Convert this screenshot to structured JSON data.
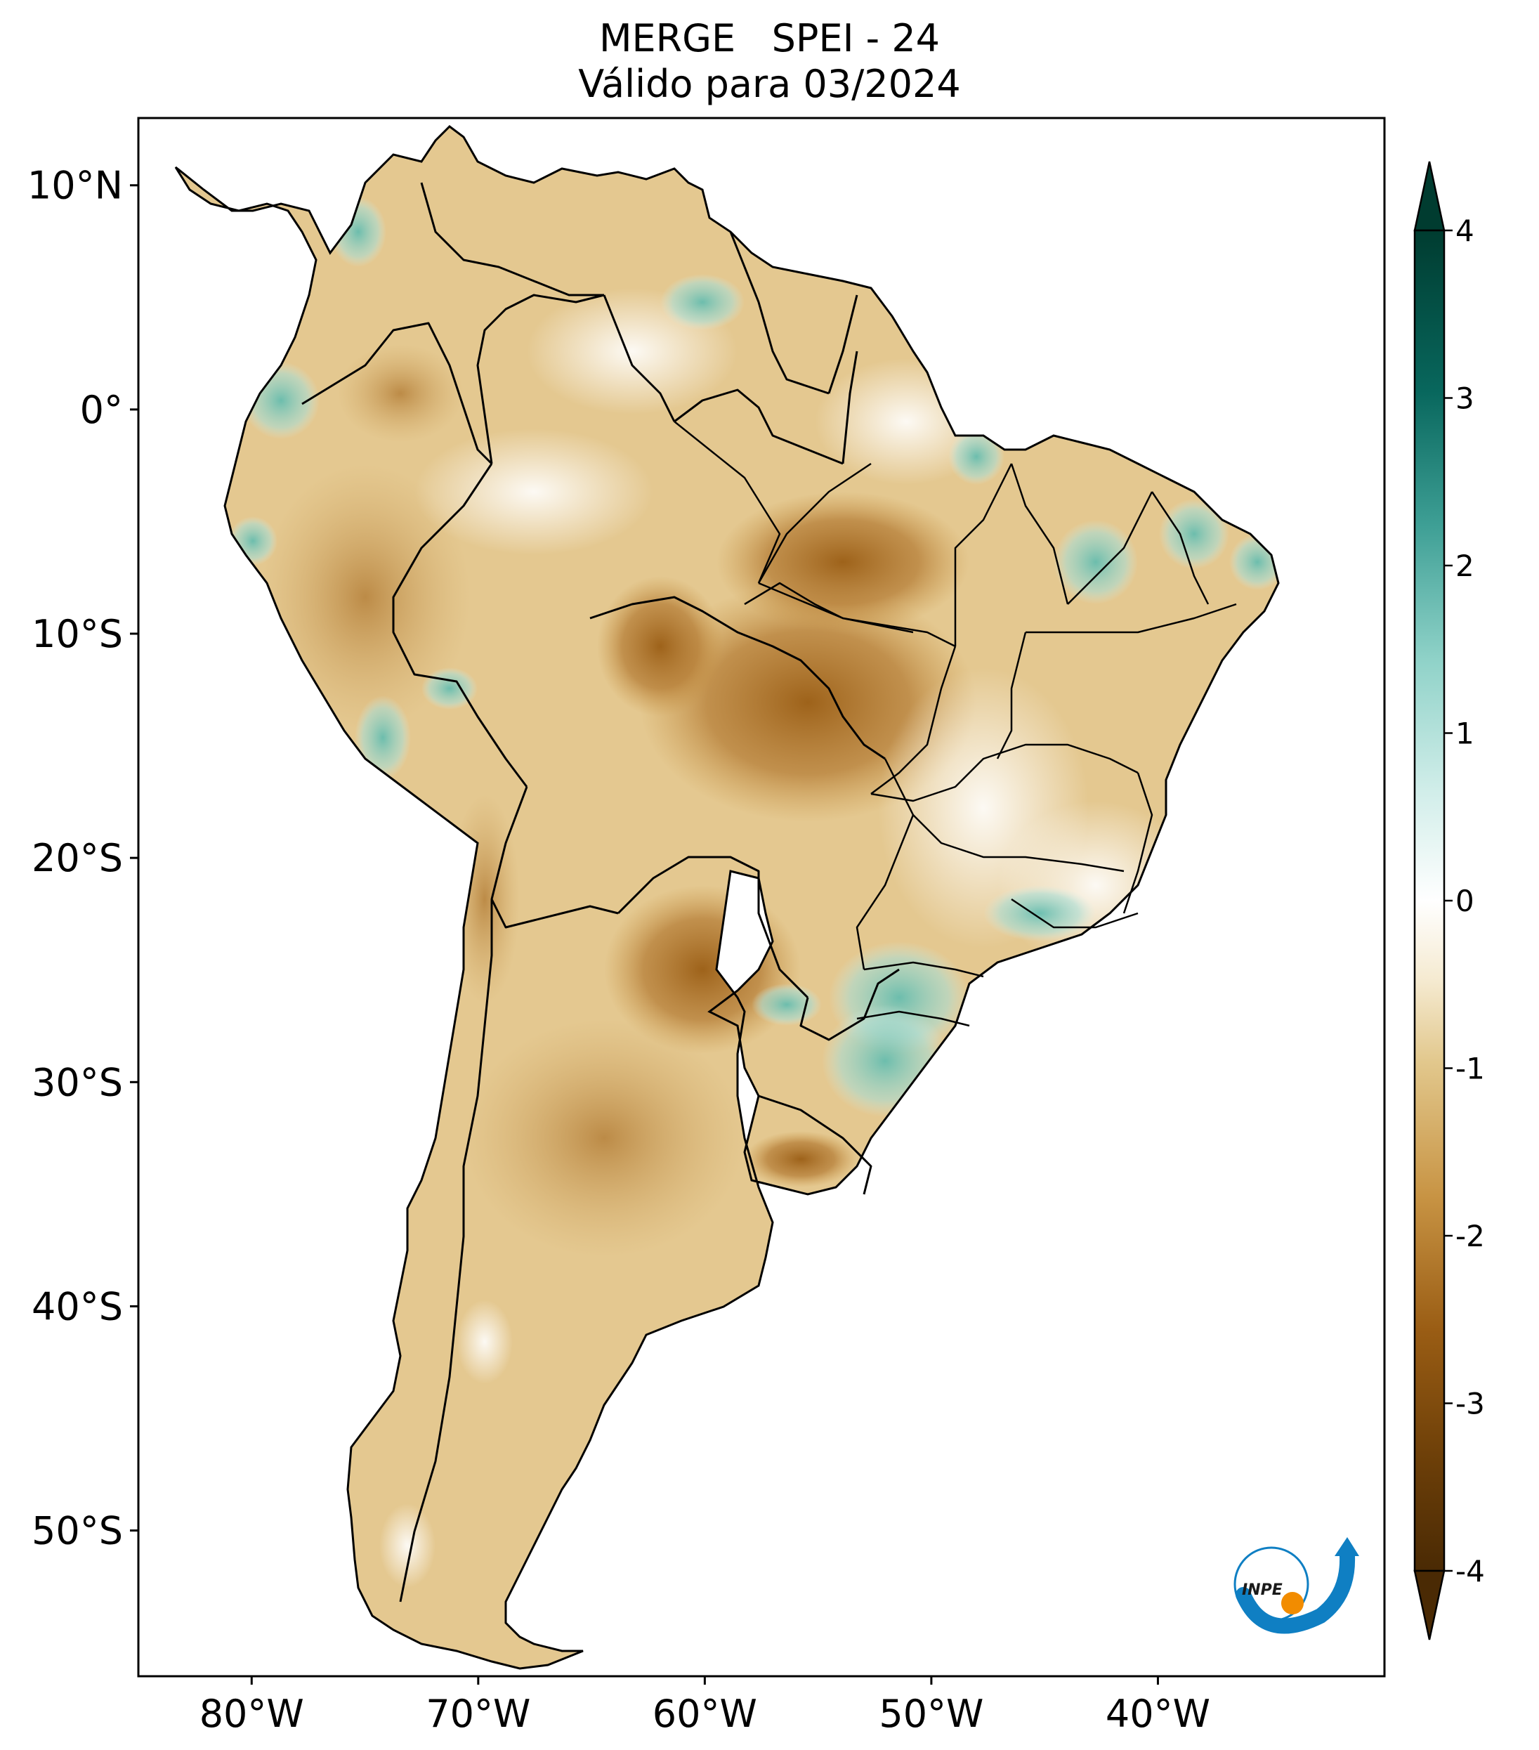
{
  "title": {
    "line1": "MERGE   SPEI - 24",
    "line2": "Válido para 03/2024"
  },
  "map": {
    "region": "South America",
    "lat_range": [
      -56.5,
      13
    ],
    "lon_range": [
      -85,
      -30
    ],
    "lat_ticks": [
      {
        "value": 10,
        "label": "10°N"
      },
      {
        "value": 0,
        "label": "0°"
      },
      {
        "value": -10,
        "label": "10°S"
      },
      {
        "value": -20,
        "label": "20°S"
      },
      {
        "value": -30,
        "label": "30°S"
      },
      {
        "value": -40,
        "label": "40°S"
      },
      {
        "value": -50,
        "label": "50°S"
      }
    ],
    "lon_ticks": [
      {
        "value": -80,
        "label": "80°W"
      },
      {
        "value": -70,
        "label": "70°W"
      },
      {
        "value": -60,
        "label": "60°W"
      },
      {
        "value": -50,
        "label": "50°W"
      },
      {
        "value": -40,
        "label": "40°W"
      }
    ]
  },
  "colorbar": {
    "range": [
      -4,
      4
    ],
    "ticks": [
      {
        "value": 4,
        "label": "4"
      },
      {
        "value": 3,
        "label": "3"
      },
      {
        "value": 2,
        "label": "2"
      },
      {
        "value": 1,
        "label": "1"
      },
      {
        "value": 0,
        "label": "0"
      },
      {
        "value": -1,
        "label": "-1"
      },
      {
        "value": -2,
        "label": "-2"
      },
      {
        "value": -3,
        "label": "-3"
      },
      {
        "value": -4,
        "label": "-4"
      }
    ],
    "colors": [
      "#543005",
      "#8c510a",
      "#bf812d",
      "#dfc27d",
      "#f6e8c3",
      "#ffffff",
      "#c7eae5",
      "#80cdc1",
      "#35978f",
      "#01665e",
      "#003c30"
    ]
  },
  "logo": {
    "text": "INPE"
  }
}
